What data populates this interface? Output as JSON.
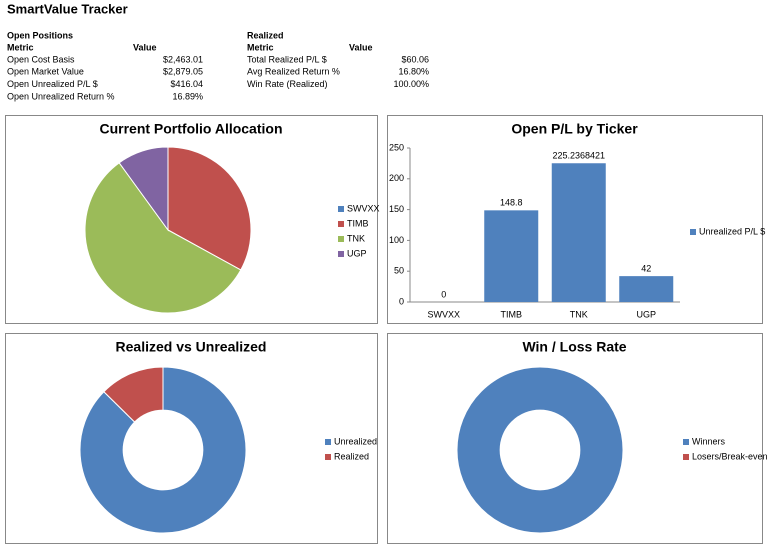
{
  "header": {
    "title": "SmartValue Tracker"
  },
  "open_positions": {
    "title": "Open Positions",
    "columns": [
      "Metric",
      "Value"
    ],
    "rows": [
      [
        "Open Cost Basis",
        "$2,463.01"
      ],
      [
        "Open Market Value",
        "$2,879.05"
      ],
      [
        "Open Unrealized P/L $",
        "$416.04"
      ],
      [
        "Open Unrealized Return %",
        "16.89%"
      ]
    ]
  },
  "realized": {
    "title": "Realized",
    "columns": [
      "Metric",
      "Value"
    ],
    "rows": [
      [
        "Total Realized P/L $",
        "$60.06"
      ],
      [
        "Avg Realized Return %",
        "16.80%"
      ],
      [
        "Win Rate (Realized)",
        "100.00%"
      ]
    ]
  },
  "chart_data": [
    {
      "type": "pie",
      "title": "Current Portfolio Allocation",
      "categories": [
        "SWVXX",
        "TIMB",
        "TNK",
        "UGP"
      ],
      "values": [
        0,
        33,
        57,
        10
      ],
      "colors": [
        "#4f81bd",
        "#c0504d",
        "#9bbb59",
        "#8064a2"
      ],
      "legend": "right"
    },
    {
      "type": "bar",
      "title": "Open P/L by Ticker",
      "categories": [
        "SWVXX",
        "TIMB",
        "TNK",
        "UGP"
      ],
      "series": [
        {
          "name": "Unrealized P/L $",
          "color": "#4f81bd",
          "values": [
            0,
            148.8,
            225.2368421,
            42
          ]
        }
      ],
      "ylim": [
        0,
        250
      ],
      "yticks": [
        0,
        50,
        100,
        150,
        200,
        250
      ],
      "legend": "right"
    },
    {
      "type": "doughnut",
      "title": "Realized vs Unrealized",
      "categories": [
        "Unrealized",
        "Realized"
      ],
      "values": [
        416.04,
        60.06
      ],
      "colors": [
        "#4f81bd",
        "#c0504d"
      ],
      "legend": "right"
    },
    {
      "type": "doughnut",
      "title": "Win / Loss Rate",
      "categories": [
        "Winners",
        "Losers/Break-even"
      ],
      "values": [
        100,
        0
      ],
      "colors": [
        "#4f81bd",
        "#c0504d"
      ],
      "legend": "right"
    }
  ]
}
